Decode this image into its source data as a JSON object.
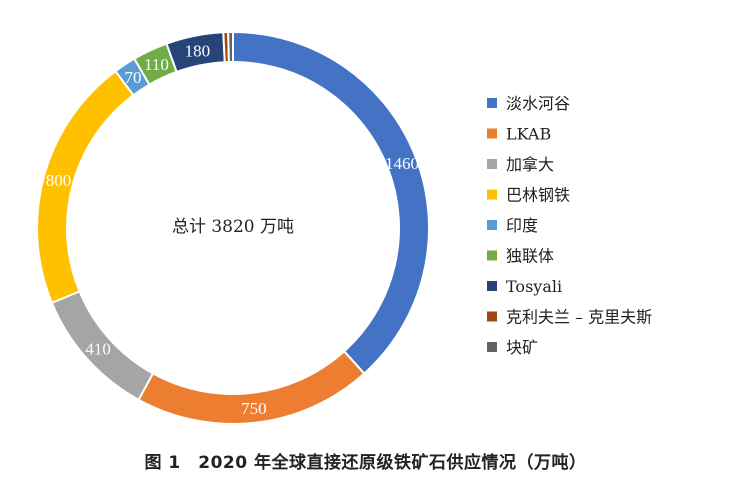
{
  "chart_data": {
    "type": "pie",
    "donut": true,
    "center_text": "总计 3820 万吨",
    "legend_position": "right",
    "slices": [
      {
        "name": "淡水河谷",
        "value": 1460,
        "color": "#4472C4",
        "label": "1460"
      },
      {
        "name": "LKAB",
        "value": 750,
        "color": "#ED7D31",
        "label": "750"
      },
      {
        "name": "加拿大",
        "value": 410,
        "color": "#A5A5A5",
        "label": "410"
      },
      {
        "name": "巴林钢铁",
        "value": 800,
        "color": "#FFC000",
        "label": "800"
      },
      {
        "name": "印度",
        "value": 70,
        "color": "#5B9BD5",
        "label": "70"
      },
      {
        "name": "独联体",
        "value": 110,
        "color": "#70AD47",
        "label": "110"
      },
      {
        "name": "Tosyali",
        "value": 180,
        "color": "#264478",
        "label": "180"
      },
      {
        "name": "克利夫兰 – 克里夫斯",
        "value": 15,
        "color": "#9E480E",
        "label": ""
      },
      {
        "name": "块矿",
        "value": 15,
        "color": "#636363",
        "label": ""
      }
    ]
  },
  "caption": "图 1　2020 年全球直接还原级铁矿石供应情况（万吨）"
}
